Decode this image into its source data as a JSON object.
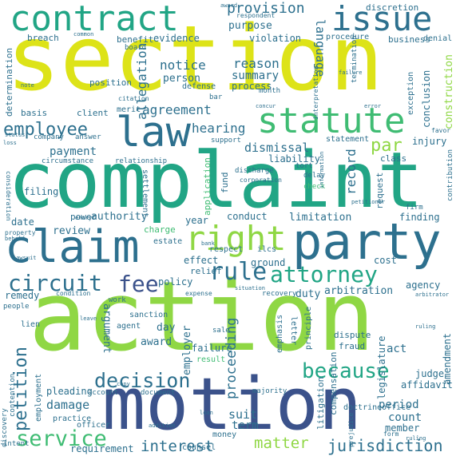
{
  "palette": {
    "lime": "#8fd744",
    "yellow": "#dde318",
    "teal": "#21a585",
    "green": "#3fbc73",
    "blue": "#2d708e",
    "navy": "#3b528b",
    "purple": "#471164",
    "indigo": "#414487",
    "cyan": "#1f9a8a"
  },
  "words": [
    {
      "text": "section"
    },
    {
      "text": "complaint"
    },
    {
      "text": "action"
    },
    {
      "text": "motion"
    },
    {
      "text": "claim"
    },
    {
      "text": "party"
    },
    {
      "text": "contract"
    },
    {
      "text": "issue"
    },
    {
      "text": "statute"
    },
    {
      "text": "law"
    },
    {
      "text": "right"
    },
    {
      "text": "rule"
    },
    {
      "text": "attorney"
    },
    {
      "text": "because"
    },
    {
      "text": "circuit"
    },
    {
      "text": "fee"
    },
    {
      "text": "decision"
    },
    {
      "text": "petition"
    },
    {
      "text": "service"
    },
    {
      "text": "employee"
    },
    {
      "text": "jurisdiction"
    },
    {
      "text": "interest"
    },
    {
      "text": "matter"
    },
    {
      "text": "provision"
    },
    {
      "text": "notice"
    },
    {
      "text": "agreement"
    },
    {
      "text": "proceeding"
    },
    {
      "text": "hearing"
    },
    {
      "text": "dismissal"
    },
    {
      "text": "record"
    },
    {
      "text": "par"
    },
    {
      "text": "language"
    },
    {
      "text": "allegation"
    },
    {
      "text": "reason"
    },
    {
      "text": "payment"
    },
    {
      "text": "damage"
    },
    {
      "text": "suit"
    },
    {
      "text": "term"
    },
    {
      "text": "period"
    },
    {
      "text": "count"
    },
    {
      "text": "member"
    },
    {
      "text": "authority"
    },
    {
      "text": "review"
    },
    {
      "text": "limitation"
    },
    {
      "text": "summary"
    },
    {
      "text": "person"
    },
    {
      "text": "process"
    },
    {
      "text": "purpose"
    },
    {
      "text": "violation"
    },
    {
      "text": "breach"
    },
    {
      "text": "benefit"
    },
    {
      "text": "evidence"
    },
    {
      "text": "discretion"
    },
    {
      "text": "business"
    },
    {
      "text": "conclusion"
    },
    {
      "text": "construction"
    },
    {
      "text": "position"
    },
    {
      "text": "defense"
    },
    {
      "text": "determination"
    },
    {
      "text": "basis"
    },
    {
      "text": "client"
    },
    {
      "text": "merit"
    },
    {
      "text": "liability"
    },
    {
      "text": "injury"
    },
    {
      "text": "class"
    },
    {
      "text": "finding"
    },
    {
      "text": "date"
    },
    {
      "text": "filing"
    },
    {
      "text": "power"
    },
    {
      "text": "year"
    },
    {
      "text": "conduct"
    },
    {
      "text": "cost"
    },
    {
      "text": "policy"
    },
    {
      "text": "relief"
    },
    {
      "text": "effect"
    },
    {
      "text": "ground"
    },
    {
      "text": "arbitration"
    },
    {
      "text": "agency"
    },
    {
      "text": "duty"
    },
    {
      "text": "argument"
    },
    {
      "text": "day"
    },
    {
      "text": "award"
    },
    {
      "text": "employer"
    },
    {
      "text": "failure"
    },
    {
      "text": "act"
    },
    {
      "text": "legislature"
    },
    {
      "text": "amendment"
    },
    {
      "text": "judge"
    },
    {
      "text": "affidavit"
    },
    {
      "text": "compensation"
    },
    {
      "text": "litigation"
    },
    {
      "text": "pleading"
    },
    {
      "text": "remedy"
    },
    {
      "text": "requirement"
    },
    {
      "text": "application"
    },
    {
      "text": "request"
    },
    {
      "text": "charge"
    },
    {
      "text": "estate"
    },
    {
      "text": "settlement"
    },
    {
      "text": "fund"
    },
    {
      "text": "doctrine"
    },
    {
      "text": "office"
    },
    {
      "text": "dispute"
    },
    {
      "text": "fraud"
    },
    {
      "text": "principle"
    },
    {
      "text": "letter"
    },
    {
      "text": "emphasis"
    },
    {
      "text": "sanction"
    },
    {
      "text": "agent"
    },
    {
      "text": "result"
    },
    {
      "text": "money"
    },
    {
      "text": "counsel"
    },
    {
      "text": "officer"
    },
    {
      "text": "practice"
    },
    {
      "text": "employment"
    },
    {
      "text": "discovery"
    },
    {
      "text": "contention"
    },
    {
      "text": "intent"
    },
    {
      "text": "lien"
    },
    {
      "text": "people"
    },
    {
      "text": "respect"
    },
    {
      "text": "ilcs"
    },
    {
      "text": "recovery"
    },
    {
      "text": "statement"
    },
    {
      "text": "support"
    },
    {
      "text": "relationship"
    },
    {
      "text": "circumstance"
    },
    {
      "text": "company"
    },
    {
      "text": "answer"
    },
    {
      "text": "procedure"
    },
    {
      "text": "termination"
    },
    {
      "text": "exception"
    },
    {
      "text": "denial"
    },
    {
      "text": "respondent"
    },
    {
      "text": "board"
    },
    {
      "text": "bar"
    },
    {
      "text": "month"
    },
    {
      "text": "citation"
    },
    {
      "text": "check"
    },
    {
      "text": "delay"
    },
    {
      "text": "tort"
    },
    {
      "text": "discharge"
    },
    {
      "text": "corporation"
    },
    {
      "text": "firm"
    },
    {
      "text": "favor"
    },
    {
      "text": "contribution"
    },
    {
      "text": "property"
    },
    {
      "text": "condition"
    },
    {
      "text": "work"
    },
    {
      "text": "expense"
    },
    {
      "text": "situation"
    },
    {
      "text": "document"
    },
    {
      "text": "account"
    },
    {
      "text": "copy"
    },
    {
      "text": "majority"
    },
    {
      "text": "sale"
    },
    {
      "text": "consideration"
    },
    {
      "text": "lawsuit"
    },
    {
      "text": "bank"
    },
    {
      "text": "entry"
    },
    {
      "text": "form"
    },
    {
      "text": "prejudice"
    },
    {
      "text": "rulîng"
    },
    {
      "text": "arbitrator"
    },
    {
      "text": "loss"
    },
    {
      "text": "status"
    },
    {
      "text": "behalf"
    },
    {
      "text": "ruling"
    },
    {
      "text": "common"
    },
    {
      "text": "award"
    },
    {
      "text": "error"
    },
    {
      "text": "concur"
    },
    {
      "text": "leave"
    },
    {
      "text": "loan"
    },
    {
      "text": "addition"
    },
    {
      "text": "note"
    },
    {
      "text": "petitioner"
    },
    {
      "text": "failure"
    },
    {
      "text": "interpretation"
    },
    {
      "text": "information"
    }
  ]
}
